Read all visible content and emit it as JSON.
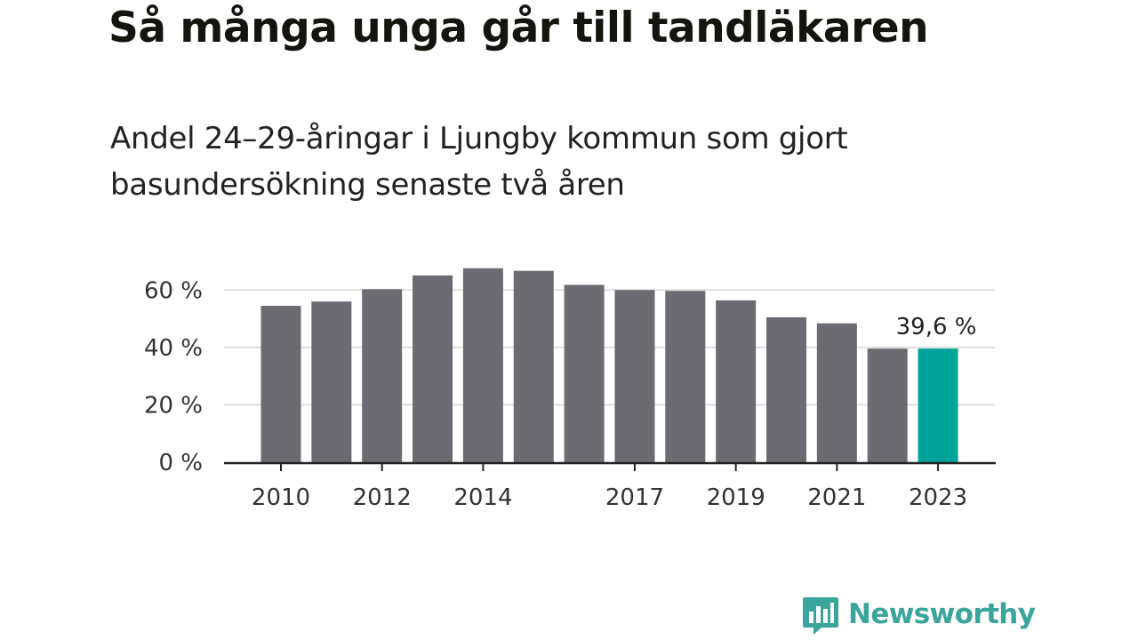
{
  "title": "Så många unga går till tandläkaren",
  "subtitle": "Andel 24–29-åringar i Ljungby kommun som gjort basundersökning senaste två åren",
  "brand": {
    "name": "Newsworthy",
    "color": "#3aa59a",
    "icon": "bar-chart-speech-bubble-icon"
  },
  "colors": {
    "bar": "#6c6b72",
    "highlight": "#00a39a",
    "grid": "#dedede",
    "axis": "#222222"
  },
  "chart_data": {
    "type": "bar",
    "title": "",
    "xlabel": "",
    "ylabel": "",
    "categories": [
      "2010",
      "2011",
      "2012",
      "2013",
      "2014",
      "2015",
      "2016",
      "2017",
      "2018",
      "2019",
      "2020",
      "2021",
      "2022",
      "2023"
    ],
    "values": [
      54.5,
      56.0,
      60.3,
      65.1,
      67.6,
      66.7,
      61.8,
      60.0,
      59.7,
      56.4,
      50.5,
      48.4,
      39.6,
      39.6
    ],
    "highlight_index": 13,
    "data_labels": [
      {
        "category": "2023",
        "text": "39,6 %"
      }
    ],
    "x_tick_labels": [
      "2010",
      "2012",
      "2014",
      "2017",
      "2019",
      "2021",
      "2023"
    ],
    "y_ticks": [
      {
        "value": 0,
        "label": "0 %"
      },
      {
        "value": 20,
        "label": "20 %"
      },
      {
        "value": 40,
        "label": "40 %"
      },
      {
        "value": 60,
        "label": "60 %"
      }
    ],
    "ylim": [
      0,
      70
    ],
    "grid": true,
    "legend": "none"
  }
}
